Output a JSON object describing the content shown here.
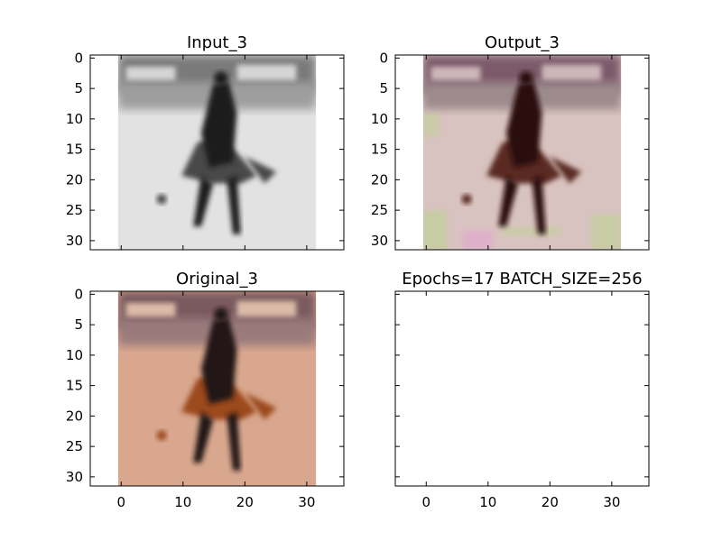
{
  "chart_data": [
    {
      "type": "image",
      "title": "Input_3",
      "xlim": [
        -5,
        36
      ],
      "ylim": [
        31.5,
        -0.5
      ],
      "image_extent": {
        "x": [
          -0.5,
          31.5
        ],
        "y": [
          -0.5,
          31.5
        ]
      },
      "yticks": [
        0,
        5,
        10,
        15,
        20,
        25,
        30
      ],
      "xticks": [],
      "image": {
        "description": "grayscale rodeo rider on horse",
        "palette": {
          "bg": "#d6d6d6",
          "band_top": "#7a7a7a",
          "band_mid": "#9e9e9e",
          "ground": "#e2e2e2",
          "figure": "#1e1e1e",
          "figure_mid": "#4a4a4a"
        }
      }
    },
    {
      "type": "image",
      "title": "Output_3",
      "xlim": [
        -5,
        36
      ],
      "ylim": [
        31.5,
        -0.5
      ],
      "image_extent": {
        "x": [
          -0.5,
          31.5
        ],
        "y": [
          -0.5,
          31.5
        ]
      },
      "yticks": [
        0,
        5,
        10,
        15,
        20,
        25,
        30
      ],
      "xticks": [],
      "image": {
        "description": "colorized rodeo rider on horse (noisy)",
        "palette": {
          "bg": "#cdb7b9",
          "band_top": "#7b5a6a",
          "band_mid": "#9c8a8c",
          "ground": "#d9c3c0",
          "figure": "#2a0f0c",
          "figure_mid": "#5a2a22",
          "noise_a": "#b9d48f",
          "noise_b": "#e3a4cf"
        }
      }
    },
    {
      "type": "image",
      "title": "Original_3",
      "xlim": [
        -5,
        36
      ],
      "ylim": [
        31.5,
        -0.5
      ],
      "image_extent": {
        "x": [
          -0.5,
          31.5
        ],
        "y": [
          -0.5,
          31.5
        ]
      },
      "yticks": [
        0,
        5,
        10,
        15,
        20,
        25,
        30
      ],
      "xticks": [
        0,
        10,
        20,
        30
      ],
      "image": {
        "description": "original color rodeo rider on horse",
        "palette": {
          "bg": "#dcbba7",
          "band_top": "#7a5a5e",
          "band_mid": "#9a7a7c",
          "ground": "#d8a78e",
          "figure": "#231714",
          "figure_mid": "#9c4a1e"
        }
      }
    },
    {
      "type": "blank",
      "title": "Epochs=17 BATCH_SIZE=256",
      "xlim": [
        -5,
        36
      ],
      "ylim": [
        31.5,
        -0.5
      ],
      "yticks": [],
      "xticks": [
        0,
        10,
        20,
        30
      ]
    }
  ]
}
